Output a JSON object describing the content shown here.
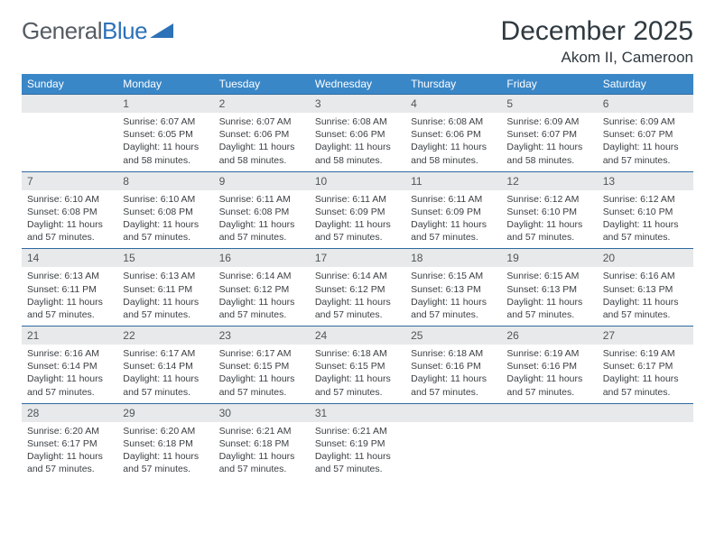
{
  "brand": {
    "part1": "General",
    "part2": "Blue"
  },
  "title": "December 2025",
  "location": "Akom II, Cameroon",
  "colors": {
    "header_bg": "#3a87c8",
    "header_text": "#ffffff",
    "numrow_bg": "#e7e9ea",
    "numrow_border": "#2e6aa0",
    "body_text": "#3a3f43",
    "title_text": "#2f3940"
  },
  "day_headers": [
    "Sunday",
    "Monday",
    "Tuesday",
    "Wednesday",
    "Thursday",
    "Friday",
    "Saturday"
  ],
  "weeks": [
    {
      "nums": [
        "",
        "1",
        "2",
        "3",
        "4",
        "5",
        "6"
      ],
      "cells": [
        null,
        {
          "sunrise": "Sunrise: 6:07 AM",
          "sunset": "Sunset: 6:05 PM",
          "daylight": "Daylight: 11 hours and 58 minutes."
        },
        {
          "sunrise": "Sunrise: 6:07 AM",
          "sunset": "Sunset: 6:06 PM",
          "daylight": "Daylight: 11 hours and 58 minutes."
        },
        {
          "sunrise": "Sunrise: 6:08 AM",
          "sunset": "Sunset: 6:06 PM",
          "daylight": "Daylight: 11 hours and 58 minutes."
        },
        {
          "sunrise": "Sunrise: 6:08 AM",
          "sunset": "Sunset: 6:06 PM",
          "daylight": "Daylight: 11 hours and 58 minutes."
        },
        {
          "sunrise": "Sunrise: 6:09 AM",
          "sunset": "Sunset: 6:07 PM",
          "daylight": "Daylight: 11 hours and 58 minutes."
        },
        {
          "sunrise": "Sunrise: 6:09 AM",
          "sunset": "Sunset: 6:07 PM",
          "daylight": "Daylight: 11 hours and 57 minutes."
        }
      ]
    },
    {
      "nums": [
        "7",
        "8",
        "9",
        "10",
        "11",
        "12",
        "13"
      ],
      "cells": [
        {
          "sunrise": "Sunrise: 6:10 AM",
          "sunset": "Sunset: 6:08 PM",
          "daylight": "Daylight: 11 hours and 57 minutes."
        },
        {
          "sunrise": "Sunrise: 6:10 AM",
          "sunset": "Sunset: 6:08 PM",
          "daylight": "Daylight: 11 hours and 57 minutes."
        },
        {
          "sunrise": "Sunrise: 6:11 AM",
          "sunset": "Sunset: 6:08 PM",
          "daylight": "Daylight: 11 hours and 57 minutes."
        },
        {
          "sunrise": "Sunrise: 6:11 AM",
          "sunset": "Sunset: 6:09 PM",
          "daylight": "Daylight: 11 hours and 57 minutes."
        },
        {
          "sunrise": "Sunrise: 6:11 AM",
          "sunset": "Sunset: 6:09 PM",
          "daylight": "Daylight: 11 hours and 57 minutes."
        },
        {
          "sunrise": "Sunrise: 6:12 AM",
          "sunset": "Sunset: 6:10 PM",
          "daylight": "Daylight: 11 hours and 57 minutes."
        },
        {
          "sunrise": "Sunrise: 6:12 AM",
          "sunset": "Sunset: 6:10 PM",
          "daylight": "Daylight: 11 hours and 57 minutes."
        }
      ]
    },
    {
      "nums": [
        "14",
        "15",
        "16",
        "17",
        "18",
        "19",
        "20"
      ],
      "cells": [
        {
          "sunrise": "Sunrise: 6:13 AM",
          "sunset": "Sunset: 6:11 PM",
          "daylight": "Daylight: 11 hours and 57 minutes."
        },
        {
          "sunrise": "Sunrise: 6:13 AM",
          "sunset": "Sunset: 6:11 PM",
          "daylight": "Daylight: 11 hours and 57 minutes."
        },
        {
          "sunrise": "Sunrise: 6:14 AM",
          "sunset": "Sunset: 6:12 PM",
          "daylight": "Daylight: 11 hours and 57 minutes."
        },
        {
          "sunrise": "Sunrise: 6:14 AM",
          "sunset": "Sunset: 6:12 PM",
          "daylight": "Daylight: 11 hours and 57 minutes."
        },
        {
          "sunrise": "Sunrise: 6:15 AM",
          "sunset": "Sunset: 6:13 PM",
          "daylight": "Daylight: 11 hours and 57 minutes."
        },
        {
          "sunrise": "Sunrise: 6:15 AM",
          "sunset": "Sunset: 6:13 PM",
          "daylight": "Daylight: 11 hours and 57 minutes."
        },
        {
          "sunrise": "Sunrise: 6:16 AM",
          "sunset": "Sunset: 6:13 PM",
          "daylight": "Daylight: 11 hours and 57 minutes."
        }
      ]
    },
    {
      "nums": [
        "21",
        "22",
        "23",
        "24",
        "25",
        "26",
        "27"
      ],
      "cells": [
        {
          "sunrise": "Sunrise: 6:16 AM",
          "sunset": "Sunset: 6:14 PM",
          "daylight": "Daylight: 11 hours and 57 minutes."
        },
        {
          "sunrise": "Sunrise: 6:17 AM",
          "sunset": "Sunset: 6:14 PM",
          "daylight": "Daylight: 11 hours and 57 minutes."
        },
        {
          "sunrise": "Sunrise: 6:17 AM",
          "sunset": "Sunset: 6:15 PM",
          "daylight": "Daylight: 11 hours and 57 minutes."
        },
        {
          "sunrise": "Sunrise: 6:18 AM",
          "sunset": "Sunset: 6:15 PM",
          "daylight": "Daylight: 11 hours and 57 minutes."
        },
        {
          "sunrise": "Sunrise: 6:18 AM",
          "sunset": "Sunset: 6:16 PM",
          "daylight": "Daylight: 11 hours and 57 minutes."
        },
        {
          "sunrise": "Sunrise: 6:19 AM",
          "sunset": "Sunset: 6:16 PM",
          "daylight": "Daylight: 11 hours and 57 minutes."
        },
        {
          "sunrise": "Sunrise: 6:19 AM",
          "sunset": "Sunset: 6:17 PM",
          "daylight": "Daylight: 11 hours and 57 minutes."
        }
      ]
    },
    {
      "nums": [
        "28",
        "29",
        "30",
        "31",
        "",
        "",
        ""
      ],
      "cells": [
        {
          "sunrise": "Sunrise: 6:20 AM",
          "sunset": "Sunset: 6:17 PM",
          "daylight": "Daylight: 11 hours and 57 minutes."
        },
        {
          "sunrise": "Sunrise: 6:20 AM",
          "sunset": "Sunset: 6:18 PM",
          "daylight": "Daylight: 11 hours and 57 minutes."
        },
        {
          "sunrise": "Sunrise: 6:21 AM",
          "sunset": "Sunset: 6:18 PM",
          "daylight": "Daylight: 11 hours and 57 minutes."
        },
        {
          "sunrise": "Sunrise: 6:21 AM",
          "sunset": "Sunset: 6:19 PM",
          "daylight": "Daylight: 11 hours and 57 minutes."
        },
        null,
        null,
        null
      ]
    }
  ]
}
